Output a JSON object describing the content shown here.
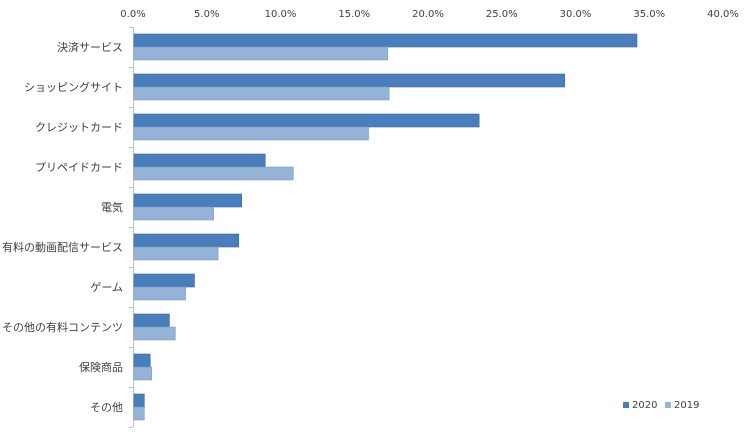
{
  "chart_data": {
    "type": "bar",
    "orientation": "horizontal",
    "categories": [
      "決済サービス",
      "ショッピングサイト",
      "クレジットカード",
      "プリペイドカード",
      "電気",
      "有料の動画配信サービス",
      "ゲーム",
      "その他の有料コンテンツ",
      "保険商品",
      "その他"
    ],
    "series": [
      {
        "name": "2020",
        "color": "#4a7ebb",
        "values": [
          34.1,
          29.2,
          23.4,
          8.9,
          7.3,
          7.1,
          4.1,
          2.4,
          1.1,
          0.7
        ]
      },
      {
        "name": "2019",
        "color": "#95b3d7",
        "values": [
          17.2,
          17.3,
          15.9,
          10.8,
          5.4,
          5.7,
          3.5,
          2.8,
          1.2,
          0.7
        ]
      }
    ],
    "xlim": [
      0,
      40
    ],
    "x_ticks": [
      "0.0%",
      "5.0%",
      "10.0%",
      "15.0%",
      "20.0%",
      "25.0%",
      "30.0%",
      "35.0%",
      "40.0%"
    ],
    "x_tick_values": [
      0,
      5,
      10,
      15,
      20,
      25,
      30,
      35,
      40
    ],
    "x_axis_position": "top",
    "grid": false,
    "legend_position": "bottom-right",
    "title": "",
    "xlabel": "",
    "ylabel": ""
  }
}
